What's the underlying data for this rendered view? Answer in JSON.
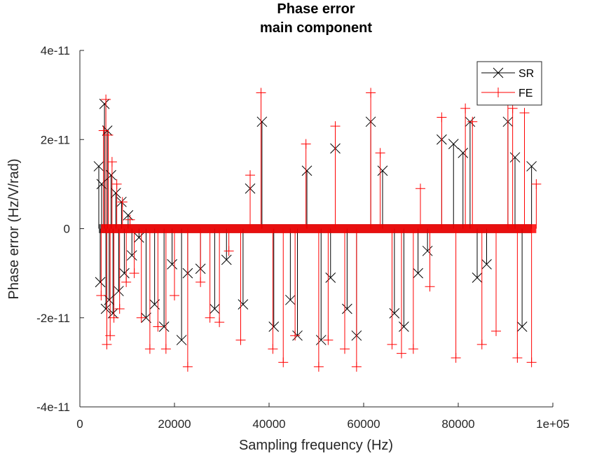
{
  "chart_data": {
    "type": "line",
    "title": [
      "Phase error",
      "main component"
    ],
    "xlabel": "Sampling frequency (Hz)",
    "ylabel": "Phase error (Hz/V/rad)",
    "xlim": [
      0,
      100000
    ],
    "ylim": [
      -4e-11,
      4e-11
    ],
    "xticks": [
      {
        "value": 0,
        "label": "0"
      },
      {
        "value": 20000,
        "label": "20000"
      },
      {
        "value": 40000,
        "label": "40000"
      },
      {
        "value": 60000,
        "label": "60000"
      },
      {
        "value": 80000,
        "label": "80000"
      },
      {
        "value": 100000,
        "label": "1e+05"
      }
    ],
    "yticks": [
      {
        "value": -4e-11,
        "label": "-4e-11"
      },
      {
        "value": -2e-11,
        "label": "-2e-11"
      },
      {
        "value": 0,
        "label": "0"
      },
      {
        "value": 2e-11,
        "label": "2e-11"
      },
      {
        "value": 4e-11,
        "label": "4e-11"
      }
    ],
    "grid": false,
    "legend_position": "top-right",
    "series": [
      {
        "name": "SR",
        "color": "#000000",
        "marker": "x",
        "x": [
          4000,
          4300,
          4600,
          5200,
          5500,
          5800,
          6200,
          6600,
          7000,
          7600,
          8200,
          8800,
          9400,
          10200,
          11000,
          12500,
          14000,
          15800,
          17800,
          19500,
          21500,
          22800,
          25500,
          28500,
          31000,
          34500,
          36000,
          38500,
          41000,
          44500,
          46000,
          48000,
          51000,
          53000,
          54000,
          56500,
          58500,
          61500,
          64000,
          66500,
          68500,
          71500,
          73500,
          76500,
          79000,
          81000,
          82500,
          84000,
          86000,
          90500,
          92000,
          93500,
          95500
        ],
        "y": [
          1.4e-11,
          -1.2e-11,
          1e-11,
          2.8e-11,
          -1.8e-11,
          2.2e-11,
          -1.6e-11,
          1.2e-11,
          -1.9e-11,
          8e-12,
          -1.4e-11,
          6e-12,
          -1e-11,
          3e-12,
          -6e-12,
          -2e-12,
          -2e-11,
          -1.7e-11,
          -2.2e-11,
          -8e-12,
          -2.5e-11,
          -1e-11,
          -9e-12,
          -1.8e-11,
          -7e-12,
          -1.7e-11,
          9e-12,
          2.4e-11,
          -2.2e-11,
          -1.6e-11,
          -2.4e-11,
          1.3e-11,
          -2.5e-11,
          -1.1e-11,
          1.8e-11,
          -1.8e-11,
          -2.4e-11,
          2.4e-11,
          1.3e-11,
          -1.9e-11,
          -2.2e-11,
          -1e-11,
          -5e-12,
          2e-11,
          1.9e-11,
          1.7e-11,
          2.4e-11,
          -1.1e-11,
          -8e-12,
          2.4e-11,
          1.6e-11,
          -2.2e-11,
          1.4e-11
        ]
      },
      {
        "name": "FE",
        "color": "#ff0000",
        "marker": "+",
        "x": [
          4500,
          5000,
          5500,
          5700,
          6000,
          6400,
          6800,
          7200,
          7800,
          8400,
          9000,
          9800,
          10600,
          11500,
          13000,
          14800,
          16500,
          18200,
          20000,
          22800,
          25500,
          27500,
          29500,
          31500,
          34000,
          36000,
          38300,
          40800,
          43000,
          45500,
          47800,
          50500,
          52500,
          54000,
          56000,
          58500,
          61500,
          63500,
          66000,
          68000,
          70500,
          72000,
          74000,
          76500,
          79500,
          81500,
          83000,
          85000,
          88000,
          90500,
          91500,
          92500,
          94000,
          95500,
          96500
        ],
        "y": [
          -1.5e-11,
          2.2e-11,
          2.9e-11,
          -2.6e-11,
          2.1e-11,
          -2.4e-11,
          1.5e-11,
          -2e-11,
          1e-11,
          -1.8e-11,
          6e-12,
          -1.2e-11,
          2e-12,
          -1e-11,
          -2e-11,
          -2.7e-11,
          -2.2e-11,
          -2.7e-11,
          -1.5e-11,
          -3.1e-11,
          -1.2e-11,
          -2e-11,
          -2.1e-11,
          -5e-12,
          -2.5e-11,
          1.2e-11,
          3.05e-11,
          -2.7e-11,
          -3e-11,
          -2.4e-11,
          1.9e-11,
          -3.1e-11,
          -2.5e-11,
          2.3e-11,
          -2.7e-11,
          -3.1e-11,
          3.05e-11,
          1.7e-11,
          -2.6e-11,
          -2.8e-11,
          -2.7e-11,
          9e-12,
          -1.3e-11,
          2.5e-11,
          -2.9e-11,
          2.7e-11,
          2.4e-11,
          -2.6e-11,
          -2.3e-11,
          2.9e-11,
          2.7e-11,
          -2.9e-11,
          2.6e-11,
          -3e-11,
          1e-11
        ]
      }
    ]
  }
}
